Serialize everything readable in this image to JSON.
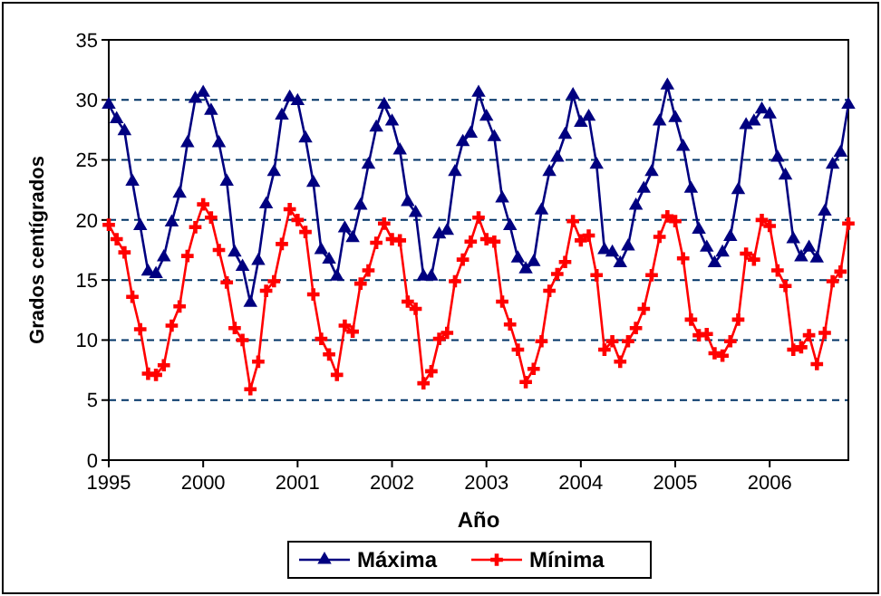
{
  "chart_data": {
    "type": "line",
    "xlabel": "Año",
    "ylabel": "Grados centígrados",
    "categories": [
      "1995",
      null,
      null,
      null,
      null,
      null,
      null,
      null,
      null,
      null,
      null,
      null,
      "2000",
      null,
      null,
      null,
      null,
      null,
      null,
      null,
      null,
      null,
      null,
      null,
      "2001",
      null,
      null,
      null,
      null,
      null,
      null,
      null,
      null,
      null,
      null,
      null,
      "2002",
      null,
      null,
      null,
      null,
      null,
      null,
      null,
      null,
      null,
      null,
      null,
      "2003",
      null,
      null,
      null,
      null,
      null,
      null,
      null,
      null,
      null,
      null,
      null,
      "2004",
      null,
      null,
      null,
      null,
      null,
      null,
      null,
      null,
      null,
      null,
      null,
      "2005",
      null,
      null,
      null,
      null,
      null,
      null,
      null,
      null,
      null,
      null,
      null,
      "2006",
      null,
      null,
      null,
      null,
      null,
      null,
      null,
      null,
      null,
      null
    ],
    "series": [
      {
        "name": "Máxima",
        "color": "#000080",
        "marker": "triangle",
        "values": [
          29.6,
          28.4,
          27.4,
          23.2,
          19.5,
          15.7,
          15.5,
          16.9,
          19.8,
          22.2,
          26.4,
          30.1,
          30.6,
          29.1,
          26.4,
          23.2,
          17.3,
          16.1,
          13.1,
          16.6,
          21.3,
          24.0,
          28.7,
          30.2,
          29.9,
          26.8,
          23.1,
          17.5,
          16.7,
          15.3,
          19.3,
          18.5,
          21.2,
          24.6,
          27.7,
          29.6,
          28.2,
          25.8,
          21.5,
          20.6,
          15.3,
          15.3,
          18.8,
          19.1,
          24.0,
          26.5,
          27.2,
          30.6,
          28.6,
          26.9,
          21.8,
          19.5,
          16.8,
          15.9,
          16.5,
          20.8,
          24.0,
          25.2,
          27.1,
          30.4,
          28.1,
          28.6,
          24.6,
          17.5,
          17.3,
          16.4,
          17.8,
          21.2,
          22.6,
          24.0,
          28.2,
          31.2,
          28.5,
          26.1,
          22.6,
          19.2,
          17.7,
          16.4,
          17.3,
          18.6,
          22.5,
          27.9,
          28.2,
          29.2,
          28.8,
          25.2,
          23.7,
          18.4,
          16.9,
          17.7,
          16.8,
          20.7,
          24.6,
          25.6,
          29.6
        ]
      },
      {
        "name": "Mínima",
        "color": "#ff0000",
        "marker": "cross",
        "values": [
          19.6,
          18.4,
          17.3,
          13.6,
          10.9,
          7.2,
          7.1,
          7.9,
          11.2,
          12.8,
          17.0,
          19.4,
          21.3,
          20.2,
          17.5,
          14.8,
          11.0,
          10.0,
          5.9,
          8.2,
          14.1,
          14.9,
          18.0,
          20.9,
          20.0,
          19.0,
          13.8,
          10.1,
          8.8,
          7.1,
          11.2,
          10.7,
          14.7,
          15.8,
          18.1,
          19.7,
          18.4,
          18.3,
          13.2,
          12.6,
          6.4,
          7.4,
          10.1,
          10.6,
          14.9,
          16.7,
          18.2,
          20.2,
          18.4,
          18.2,
          13.2,
          11.3,
          9.2,
          6.5,
          7.6,
          9.9,
          14.1,
          15.5,
          16.5,
          19.9,
          18.3,
          18.7,
          15.4,
          9.2,
          9.9,
          8.2,
          9.9,
          11.0,
          12.6,
          15.4,
          18.6,
          20.3,
          19.9,
          16.8,
          11.7,
          10.4,
          10.5,
          8.9,
          8.7,
          9.9,
          11.7,
          17.2,
          16.7,
          20.0,
          19.5,
          15.8,
          14.5,
          9.2,
          9.4,
          10.4,
          8.0,
          10.6,
          14.9,
          15.7,
          19.7
        ]
      }
    ],
    "ylim": [
      0,
      35
    ],
    "yticks": [
      0,
      5,
      10,
      15,
      20,
      25,
      30,
      35
    ],
    "grid": "y",
    "legend": "bottom",
    "line_style": "solid"
  }
}
